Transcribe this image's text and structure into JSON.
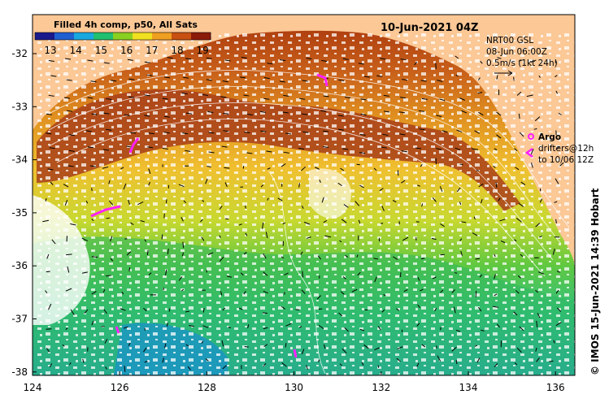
{
  "map": {
    "title": "10-Jun-2021 04Z",
    "colorbar": {
      "title": "Filled 4h comp, p50, All Sats",
      "ticks": [
        "13",
        "14",
        "15",
        "16",
        "17",
        "18",
        "19"
      ],
      "colors": [
        "#1a1a8c",
        "#1f5fd0",
        "#18a8e0",
        "#20c070",
        "#8ad020",
        "#f0e020",
        "#f0a020",
        "#c85010",
        "#8c1a0a"
      ]
    },
    "current_legend": {
      "line1": "NRT00 GSL",
      "line2": "08-Jun 06:00Z",
      "line3": "0.5m/s (1kt 24h)"
    },
    "argo": {
      "label": "Argo",
      "line2": "drifters@12h",
      "line3": "to 10/06 12Z"
    },
    "credit": "© IMOS 15-Jun-2021 14:39 Hobart",
    "lat_ticks": [
      "-32",
      "-33",
      "-34",
      "-35",
      "-36",
      "-37",
      "-38"
    ],
    "lon_ticks": [
      "124",
      "126",
      "128",
      "130",
      "132",
      "134",
      "136"
    ],
    "land_color": "#fbc896",
    "missing_color": "#ffffff"
  }
}
